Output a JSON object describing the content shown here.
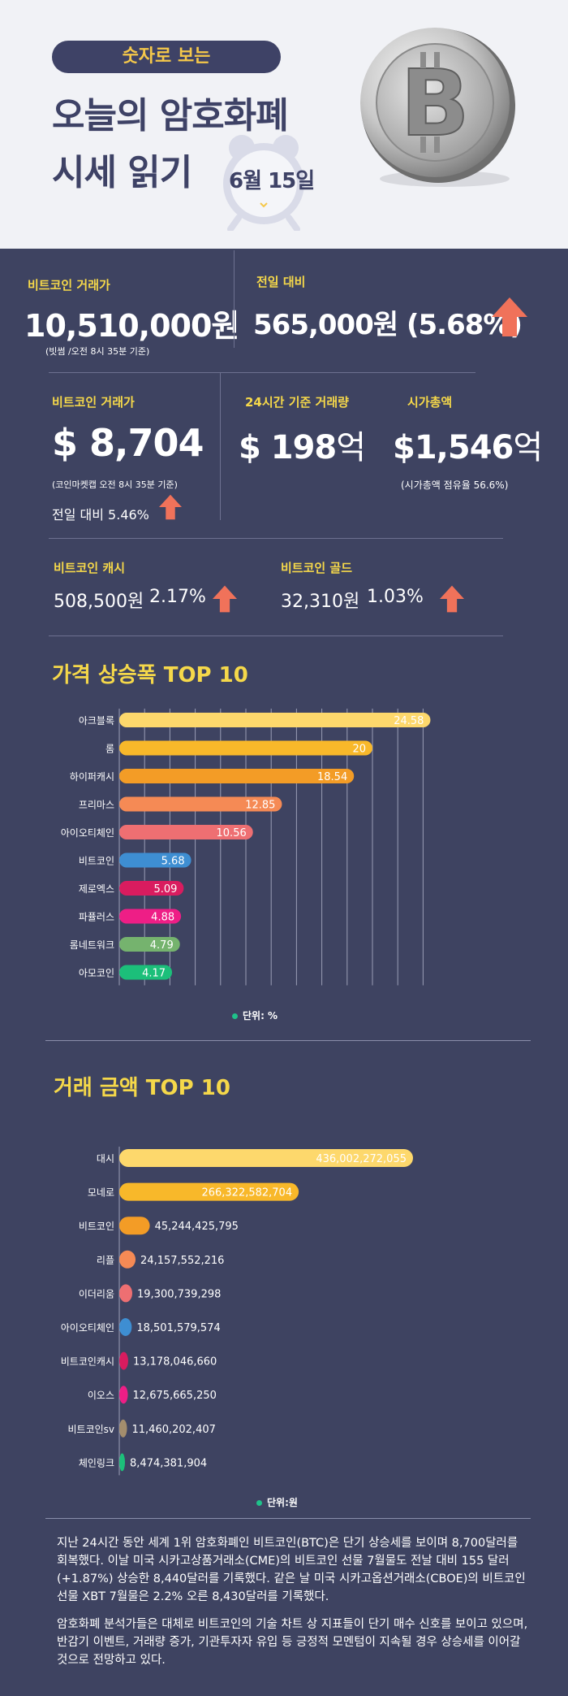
{
  "header": {
    "badge": "숫자로 보는",
    "title_line1": "오늘의 암호화폐",
    "title_line2": "시세 읽기",
    "date": "6월 15일"
  },
  "stats": {
    "krw_price_label": "비트코인 거래가",
    "krw_price_value": "10,510,000원",
    "krw_price_note": "(빗썸 /오전 8시 35분 기준)",
    "change_label": "전일 대비",
    "change_value": "565,000원 (5.68%)",
    "usd_price_label": "비트코인 거래가",
    "usd_price_value": "$ 8,704",
    "usd_price_note": "(코인마켓캡 오전 8시 35분 기준)",
    "usd_change": "전일 대비 5.46%",
    "volume_label": "24시간 기준 거래량",
    "volume_value": "$ 198",
    "volume_unit": "억",
    "mcap_label": "시가총액",
    "mcap_value": "$1,546",
    "mcap_unit": "억",
    "mcap_note": "(시가총액 점유율 56.6%)",
    "bch_label": "비트코인 캐시",
    "bch_value": "508,500원",
    "bch_change": "2.17%",
    "btg_label": "비트코인 골드",
    "btg_value": "32,310원",
    "btg_change": "1.03%"
  },
  "colors": {
    "background": "#3e4361",
    "accent_yellow": "#f5d84a",
    "up_arrow": "#f0725a"
  },
  "chart_data": [
    {
      "type": "bar",
      "orientation": "horizontal",
      "title": "가격 상승폭 TOP 10",
      "unit_label": "단위: %",
      "categories": [
        "아크블록",
        "롬",
        "하이퍼캐시",
        "프리마스",
        "아이오티체인",
        "비트코인",
        "제로엑스",
        "파퓰러스",
        "롬네트워크",
        "아모코인"
      ],
      "values": [
        24.58,
        20,
        18.54,
        12.85,
        10.56,
        5.68,
        5.09,
        4.88,
        4.79,
        4.17
      ],
      "value_labels": [
        "24.58",
        "20",
        "18.54",
        "12.85",
        "10.56",
        "5.68",
        "5.09",
        "4.88",
        "4.79",
        "4.17"
      ],
      "colors": [
        "#fdd86c",
        "#f8b82a",
        "#f39c26",
        "#f58a55",
        "#ee6f72",
        "#3e8ed2",
        "#d91c5f",
        "#ee1e86",
        "#75b36e",
        "#1cbf7a"
      ],
      "xlim": [
        0,
        25
      ],
      "grid": true
    },
    {
      "type": "bar",
      "orientation": "horizontal",
      "title": "거래 금액 TOP 10",
      "unit_label": "단위:원",
      "categories": [
        "대시",
        "모네로",
        "비트코인",
        "리플",
        "이더리움",
        "아이오티체인",
        "비트코인캐시",
        "이오스",
        "비트코인sv",
        "체인링크"
      ],
      "values": [
        436002272055,
        266322582704,
        45244425795,
        24157552216,
        19300739298,
        18501579574,
        13178046660,
        12675665250,
        11460202407,
        8474381904
      ],
      "value_labels": [
        "436,002,272,055",
        "266,322,582,704",
        "45,244,425,795",
        "24,157,552,216",
        "19,300,739,298",
        "18,501,579,574",
        "13,178,046,660",
        "12,675,665,250",
        "11,460,202,407",
        "8,474,381,904"
      ],
      "colors": [
        "#fdd86c",
        "#f8b82a",
        "#f39c26",
        "#f58a55",
        "#ee6f72",
        "#3e8ed2",
        "#d91c5f",
        "#ee1e86",
        "#a38d6d",
        "#1cbf7a"
      ],
      "xlim": [
        0,
        436002272055
      ],
      "grid": false
    }
  ],
  "body_text": {
    "para1": "지난 24시간 동안 세계 1위 암호화폐인 비트코인(BTC)은 단기 상승세를 보이며 8,700달러를 회복했다. 이날 미국 시카고상품거래소(CME)의 비트코인 선물 7월물도 전날 대비 155 달러(+1.87%) 상승한 8,440달러를 기록했다. 같은 날 미국 시카고옵션거래소(CBOE)의 비트코인 선물 XBT 7월물은 2.2% 오른 8,430달러를 기록했다.",
    "para2": "암호화폐 분석가들은 대체로 비트코인의 기술 차트 상 지표들이 단기 매수 신호를 보이고 있으며, 반감기 이벤트, 거래량 증가, 기관투자자 유입 등 긍정적 모멘텀이 지속될 경우 상승세를 이어갈 것으로 전망하고 있다."
  }
}
